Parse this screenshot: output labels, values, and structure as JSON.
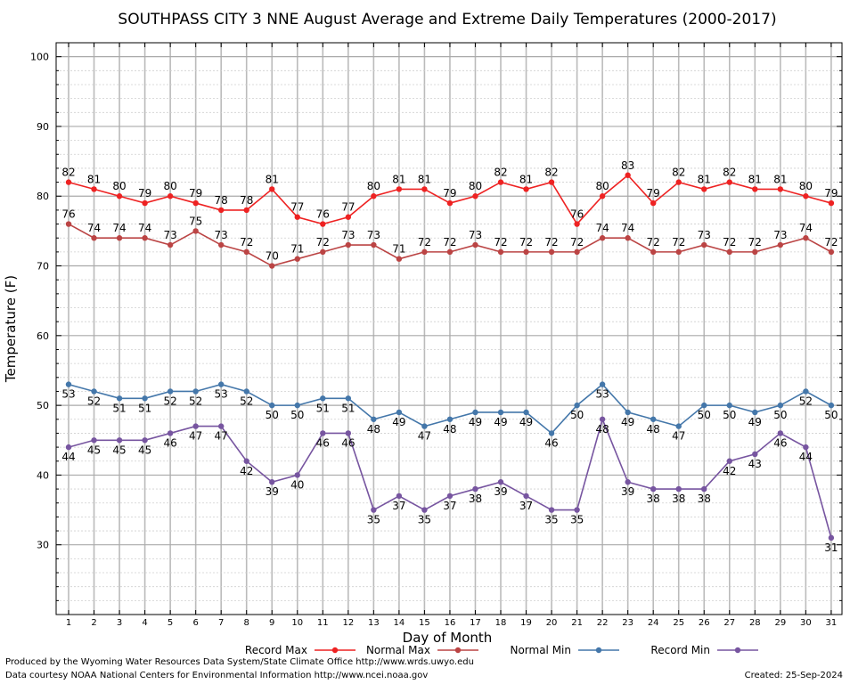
{
  "footer": {
    "produced_by": "Produced by the Wyoming Water Resources Data System/State Climate Office http://www.wrds.uwyo.edu",
    "courtesy": "Data courtesy NOAA National Centers for Environmental Information http://www.ncei.noaa.gov",
    "created": "Created:  25-Sep-2024"
  },
  "chart_data": {
    "type": "line",
    "title": "SOUTHPASS CITY 3 NNE August Average and Extreme Daily Temperatures (2000-2017)",
    "xlabel": "Day of Month",
    "ylabel": "Temperature (F)",
    "ylim": [
      20,
      102
    ],
    "yticks": [
      30,
      40,
      50,
      60,
      70,
      80,
      90,
      100
    ],
    "x": [
      1,
      2,
      3,
      4,
      5,
      6,
      7,
      8,
      9,
      10,
      11,
      12,
      13,
      14,
      15,
      16,
      17,
      18,
      19,
      20,
      21,
      22,
      23,
      24,
      25,
      26,
      27,
      28,
      29,
      30,
      31
    ],
    "grid": true,
    "legend_position": "bottom",
    "series": [
      {
        "name": "Record Max",
        "color": "#ee2222",
        "values": [
          82,
          81,
          80,
          79,
          80,
          79,
          78,
          78,
          81,
          77,
          76,
          77,
          80,
          81,
          81,
          79,
          80,
          82,
          81,
          82,
          76,
          80,
          83,
          79,
          82,
          81,
          82,
          81,
          81,
          80,
          79
        ]
      },
      {
        "name": "Normal Max",
        "color": "#bb4444",
        "values": [
          76,
          74,
          74,
          74,
          73,
          75,
          73,
          72,
          70,
          71,
          72,
          73,
          73,
          71,
          72,
          72,
          73,
          72,
          72,
          72,
          72,
          74,
          74,
          72,
          72,
          73,
          72,
          72,
          73,
          74,
          72
        ]
      },
      {
        "name": "Normal Min",
        "color": "#4477aa",
        "values": [
          53,
          52,
          51,
          51,
          52,
          52,
          53,
          52,
          50,
          50,
          51,
          51,
          48,
          49,
          47,
          48,
          49,
          49,
          49,
          46,
          50,
          53,
          49,
          48,
          47,
          50,
          50,
          49,
          50,
          52,
          50
        ]
      },
      {
        "name": "Record Min",
        "color": "#7755a0",
        "values": [
          44,
          45,
          45,
          45,
          46,
          47,
          47,
          42,
          39,
          40,
          46,
          46,
          35,
          37,
          35,
          37,
          38,
          39,
          37,
          35,
          35,
          48,
          39,
          38,
          38,
          38,
          42,
          43,
          46,
          44,
          31
        ]
      }
    ]
  }
}
